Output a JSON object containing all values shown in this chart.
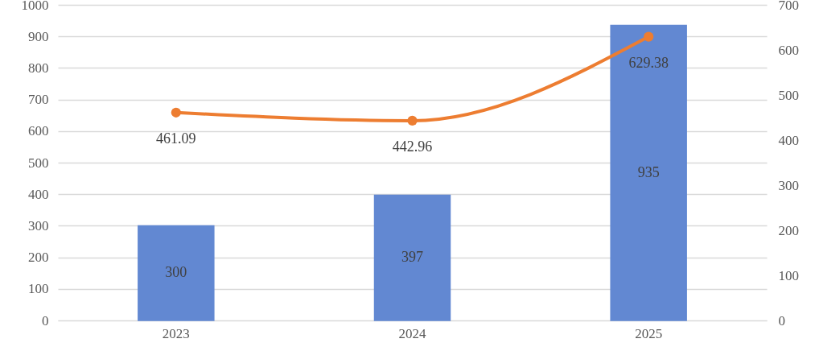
{
  "chart_data": {
    "type": "bar",
    "categories": [
      "2023",
      "2024",
      "2025"
    ],
    "series": [
      {
        "color": "#6288d2",
        "values": [
          300,
          397,
          935
        ]
      },
      {
        "type": "line",
        "axis": "y2",
        "color": "#ed7d31",
        "values": [
          461.09,
          442.96,
          629.38
        ]
      }
    ],
    "ylim": [
      0,
      1000
    ],
    "yticks": [
      0,
      100,
      200,
      300,
      400,
      500,
      600,
      700,
      800,
      900,
      1000
    ],
    "y2lim": [
      0,
      700
    ],
    "y2ticks": [
      0,
      100,
      200,
      300,
      400,
      500,
      600,
      700
    ],
    "grid": "y",
    "data_labels": true,
    "marker": "circle",
    "line_style": "solid"
  }
}
